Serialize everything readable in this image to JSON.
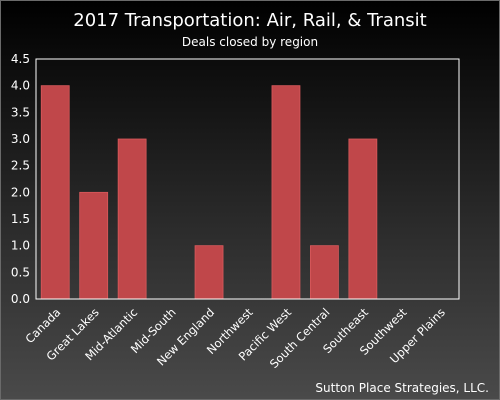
{
  "chart_data": {
    "type": "bar",
    "title": "2017 Transportation: Air, Rail, & Transit",
    "subtitle": "Deals closed by region",
    "xlabel": "",
    "ylabel": "",
    "categories": [
      "Canada",
      "Great Lakes",
      "Mid-Atlantic",
      "Mid-South",
      "New England",
      "Northwest",
      "Pacific West",
      "South Central",
      "Southeast",
      "Southwest",
      "Upper Plains"
    ],
    "values": [
      4,
      2,
      3,
      0,
      1,
      0,
      4,
      1,
      3,
      0,
      0
    ],
    "ylim": [
      0,
      4.5
    ],
    "yticks": [
      "0.0",
      "0.5",
      "1.0",
      "1.5",
      "2.0",
      "2.5",
      "3.0",
      "3.5",
      "4.0",
      "4.5"
    ],
    "grid": false,
    "legend": "none",
    "bar_color": "#c0474a",
    "bar_edge_color": "#d95a5c",
    "axes_border_color": "#ffffff"
  },
  "credit": "Sutton Place Strategies, LLC."
}
